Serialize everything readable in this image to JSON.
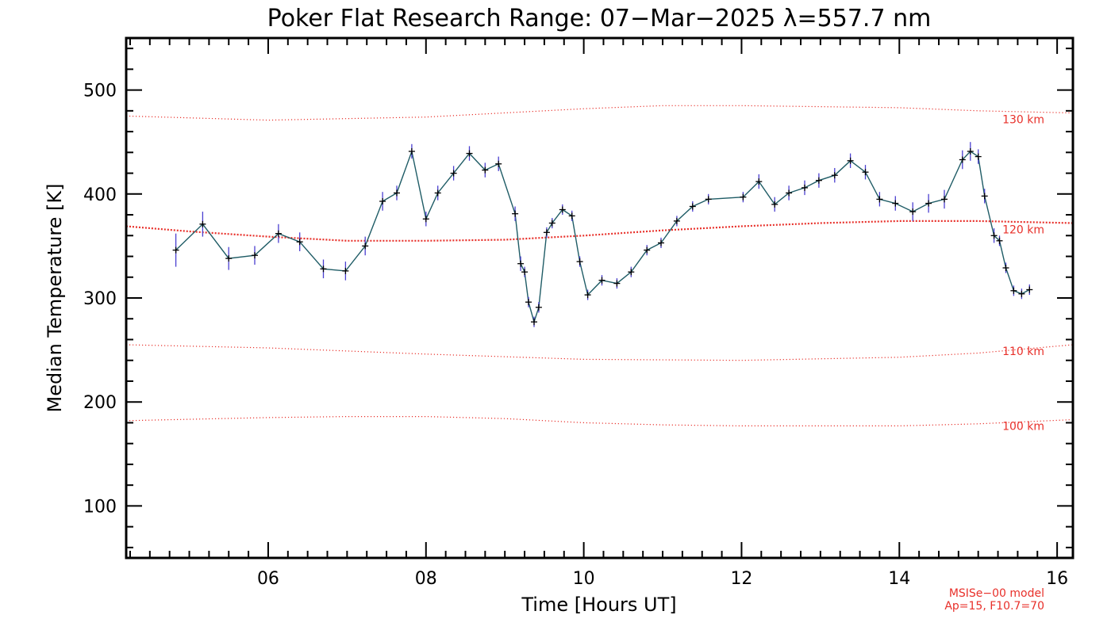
{
  "chart_data": {
    "type": "line",
    "title": "Poker Flat Research Range: 07−Mar−2025 λ=557.7 nm",
    "xlabel": "Time [Hours UT]",
    "ylabel": "Median Temperature [K]",
    "xlim": [
      4.2,
      16.2
    ],
    "ylim": [
      50,
      550
    ],
    "x_ticks": [
      6,
      8,
      10,
      12,
      14,
      16
    ],
    "x_tick_labels": [
      "06",
      "08",
      "10",
      "12",
      "14",
      "16"
    ],
    "y_ticks": [
      100,
      200,
      300,
      400,
      500
    ],
    "y_tick_labels": [
      "100",
      "200",
      "300",
      "400",
      "500"
    ],
    "series": [
      {
        "color": "#1f5c66",
        "marker": "+",
        "errorbar_color": "#4a3fd0",
        "x": [
          4.83,
          5.17,
          5.5,
          5.83,
          6.13,
          6.4,
          6.7,
          6.98,
          7.23,
          7.45,
          7.63,
          7.82,
          8.0,
          8.15,
          8.35,
          8.55,
          8.75,
          8.92,
          9.13,
          9.2,
          9.25,
          9.3,
          9.37,
          9.43,
          9.53,
          9.6,
          9.73,
          9.85,
          9.95,
          10.05,
          10.23,
          10.42,
          10.6,
          10.8,
          10.98,
          11.18,
          11.38,
          11.58,
          12.02,
          12.22,
          12.42,
          12.6,
          12.8,
          12.98,
          13.18,
          13.38,
          13.57,
          13.75,
          13.95,
          14.17,
          14.37,
          14.57,
          14.8,
          14.9,
          15.0,
          15.08,
          15.2,
          15.27,
          15.35,
          15.45,
          15.55,
          15.65
        ],
        "y": [
          346,
          371,
          338,
          341,
          362,
          354,
          328,
          326,
          350,
          393,
          401,
          441,
          376,
          401,
          420,
          439,
          423,
          429,
          381,
          333,
          325,
          296,
          277,
          291,
          363,
          372,
          385,
          379,
          335,
          303,
          317,
          314,
          325,
          346,
          353,
          374,
          388,
          395,
          397,
          412,
          390,
          401,
          406,
          413,
          418,
          432,
          421,
          395,
          391,
          383,
          391,
          395,
          433,
          441,
          436,
          398,
          360,
          355,
          329,
          307,
          304,
          308
        ],
        "errors": [
          16,
          12,
          11,
          9,
          9,
          9,
          9,
          9,
          9,
          9,
          7,
          7,
          7,
          7,
          7,
          7,
          7,
          7,
          7,
          7,
          5,
          5,
          5,
          5,
          5,
          5,
          5,
          5,
          5,
          5,
          5,
          5,
          5,
          5,
          5,
          5,
          5,
          5,
          5,
          7,
          7,
          7,
          7,
          7,
          7,
          7,
          7,
          7,
          7,
          9,
          9,
          9,
          9,
          9,
          7,
          7,
          7,
          5,
          5,
          5,
          5,
          5
        ]
      }
    ],
    "reference_lines": [
      {
        "label": "130 km",
        "color": "#e8302a",
        "style": "dotted",
        "x": [
          4.2,
          6.0,
          8.0,
          10.0,
          11.0,
          12.0,
          13.0,
          14.0,
          15.0,
          16.2
        ],
        "y": [
          475,
          471,
          474,
          482,
          485,
          485,
          484,
          483,
          480,
          478
        ]
      },
      {
        "label": "120 km",
        "color": "#e8302a",
        "style": "dotted",
        "emphasis": true,
        "x": [
          4.2,
          5.0,
          6.0,
          7.0,
          8.0,
          9.0,
          10.0,
          11.0,
          12.0,
          13.0,
          14.0,
          15.0,
          16.2
        ],
        "y": [
          369,
          364,
          359,
          355,
          355,
          356,
          360,
          365,
          369,
          372,
          374,
          374,
          372
        ]
      },
      {
        "label": "110 km",
        "color": "#e8302a",
        "style": "dotted",
        "x": [
          4.2,
          6.0,
          8.0,
          10.0,
          12.0,
          14.0,
          15.0,
          16.2
        ],
        "y": [
          255,
          252,
          246,
          241,
          240,
          243,
          247,
          255
        ]
      },
      {
        "label": "100 km",
        "color": "#e8302a",
        "style": "dotted",
        "x": [
          4.2,
          6.0,
          7.0,
          8.0,
          9.0,
          10.0,
          11.0,
          12.0,
          13.0,
          14.0,
          15.0,
          16.2
        ],
        "y": [
          182,
          185,
          186,
          186,
          184,
          180,
          178,
          177,
          177,
          177,
          179,
          183
        ]
      }
    ],
    "footnote": [
      "MSISe−00 model",
      "Ap=15, F10.7=70"
    ]
  }
}
